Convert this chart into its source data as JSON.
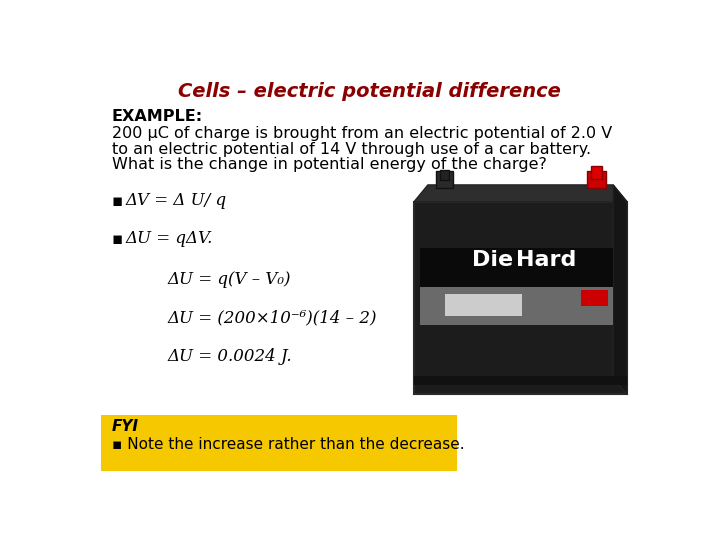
{
  "title": "Cells – electric potential difference",
  "title_color": "#8B0000",
  "title_fontsize": 14,
  "bg_color": "#FFFFFF",
  "example_label": "EXAMPLE:",
  "example_line1": "200 μC of charge is brought from an electric potential of 2.0 V",
  "example_line2": "to an electric potential of 14 V through use of a car battery.",
  "example_line3": "What is the change in potential energy of the charge?",
  "bullet_char": "▪",
  "bullet1_main": "ΔV = Δ U/ q",
  "bullet2_main": "ΔU = qΔV.",
  "eq1": "ΔU = q(V – V₀)",
  "eq2": "ΔU = (200×10⁻⁶)(14 – 2)",
  "eq3": "ΔU = 0.0024 J.",
  "fyi_bg": "#F5C800",
  "fyi_title": "FYI",
  "fyi_text": "▪ Note the increase rather than the decrease.",
  "font_body": 11.5,
  "font_eq": 12,
  "font_bullet": 12
}
